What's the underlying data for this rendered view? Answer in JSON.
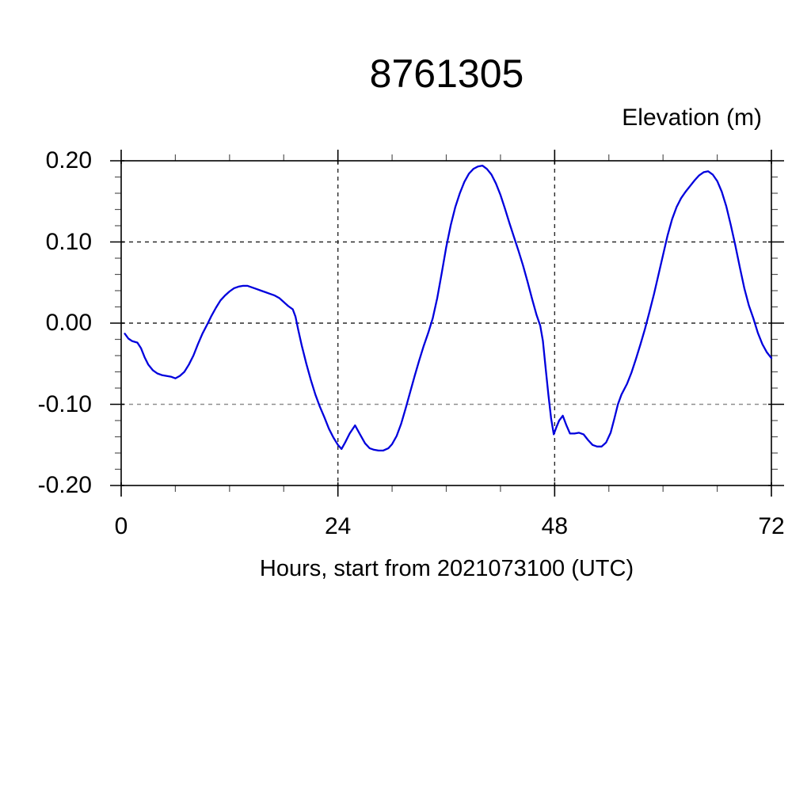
{
  "chart": {
    "title": "8761305",
    "y_axis_title": "Elevation (m)",
    "x_axis_label": "Hours, start from 2021073100 (UTC)"
  },
  "chart_data": {
    "type": "line",
    "title": "8761305",
    "xlabel": "Hours, start from 2021073100 (UTC)",
    "ylabel": "Elevation (m)",
    "xlim": [
      0,
      72
    ],
    "ylim": [
      -0.2,
      0.2
    ],
    "x_major_ticks": [
      0,
      24,
      48,
      72
    ],
    "x_minor_interval": 6,
    "y_major_ticks": [
      -0.2,
      -0.1,
      0.0,
      0.1,
      0.2
    ],
    "y_minor_interval": 0.02,
    "x_tick_labels": [
      "0",
      "24",
      "48",
      "72"
    ],
    "y_tick_labels": [
      "0.20",
      "0.10",
      "0.00",
      "-0.10",
      "-0.20"
    ],
    "grid": {
      "style": "dashed",
      "x_lines": [
        24,
        48
      ],
      "y_lines": [
        0.1,
        0.0,
        -0.1
      ],
      "x_line_color": "#2a2a2a",
      "y_line_colors": {
        "0.1": "#2a2a2a",
        "0": "#2a2a2a",
        "-0.1": "#8f8f8f"
      }
    },
    "line_color": "#0000dd",
    "frame_color": "#000000",
    "background": "#ffffff",
    "series": [
      {
        "name": "Elevation (m)",
        "points": [
          [
            0.4,
            -0.013
          ],
          [
            0.8,
            -0.019
          ],
          [
            1.2,
            -0.022
          ],
          [
            1.8,
            -0.024
          ],
          [
            2.2,
            -0.031
          ],
          [
            2.6,
            -0.042
          ],
          [
            3.0,
            -0.051
          ],
          [
            3.5,
            -0.058
          ],
          [
            4.0,
            -0.062
          ],
          [
            4.5,
            -0.064
          ],
          [
            5.0,
            -0.065
          ],
          [
            5.5,
            -0.066
          ],
          [
            6.0,
            -0.068
          ],
          [
            6.5,
            -0.065
          ],
          [
            7.0,
            -0.06
          ],
          [
            7.5,
            -0.051
          ],
          [
            8.0,
            -0.04
          ],
          [
            8.5,
            -0.026
          ],
          [
            9.0,
            -0.013
          ],
          [
            9.6,
            0.0
          ],
          [
            10.0,
            0.009
          ],
          [
            10.5,
            0.019
          ],
          [
            11.0,
            0.028
          ],
          [
            11.5,
            0.034
          ],
          [
            12.0,
            0.039
          ],
          [
            12.5,
            0.043
          ],
          [
            13.0,
            0.045
          ],
          [
            13.5,
            0.046
          ],
          [
            14.0,
            0.046
          ],
          [
            14.5,
            0.044
          ],
          [
            15.0,
            0.042
          ],
          [
            15.5,
            0.04
          ],
          [
            16.0,
            0.038
          ],
          [
            16.5,
            0.036
          ],
          [
            17.0,
            0.034
          ],
          [
            17.5,
            0.031
          ],
          [
            18.0,
            0.026
          ],
          [
            18.5,
            0.021
          ],
          [
            19.0,
            0.017
          ],
          [
            19.3,
            0.008
          ],
          [
            19.6,
            -0.008
          ],
          [
            20.0,
            -0.028
          ],
          [
            20.5,
            -0.05
          ],
          [
            21.0,
            -0.07
          ],
          [
            21.5,
            -0.088
          ],
          [
            22.0,
            -0.103
          ],
          [
            22.5,
            -0.116
          ],
          [
            23.0,
            -0.13
          ],
          [
            23.5,
            -0.141
          ],
          [
            24.0,
            -0.15
          ],
          [
            24.4,
            -0.155
          ],
          [
            24.8,
            -0.147
          ],
          [
            25.3,
            -0.136
          ],
          [
            25.9,
            -0.126
          ],
          [
            26.4,
            -0.136
          ],
          [
            27.0,
            -0.148
          ],
          [
            27.5,
            -0.154
          ],
          [
            28.0,
            -0.156
          ],
          [
            28.5,
            -0.157
          ],
          [
            29.0,
            -0.157
          ],
          [
            29.6,
            -0.154
          ],
          [
            30.0,
            -0.149
          ],
          [
            30.5,
            -0.139
          ],
          [
            31.0,
            -0.124
          ],
          [
            31.5,
            -0.105
          ],
          [
            32.0,
            -0.085
          ],
          [
            32.5,
            -0.065
          ],
          [
            33.0,
            -0.046
          ],
          [
            33.5,
            -0.028
          ],
          [
            34.0,
            -0.012
          ],
          [
            34.5,
            0.006
          ],
          [
            35.0,
            0.031
          ],
          [
            35.5,
            0.062
          ],
          [
            36.0,
            0.094
          ],
          [
            36.5,
            0.121
          ],
          [
            37.0,
            0.143
          ],
          [
            37.5,
            0.16
          ],
          [
            38.0,
            0.174
          ],
          [
            38.5,
            0.184
          ],
          [
            39.0,
            0.19
          ],
          [
            39.5,
            0.193
          ],
          [
            40.0,
            0.194
          ],
          [
            40.5,
            0.19
          ],
          [
            41.0,
            0.183
          ],
          [
            41.5,
            0.172
          ],
          [
            42.0,
            0.158
          ],
          [
            42.5,
            0.141
          ],
          [
            43.0,
            0.123
          ],
          [
            43.5,
            0.106
          ],
          [
            44.0,
            0.089
          ],
          [
            44.5,
            0.071
          ],
          [
            45.0,
            0.051
          ],
          [
            45.5,
            0.03
          ],
          [
            46.0,
            0.01
          ],
          [
            46.4,
            -0.003
          ],
          [
            46.7,
            -0.022
          ],
          [
            47.0,
            -0.055
          ],
          [
            47.3,
            -0.088
          ],
          [
            47.6,
            -0.117
          ],
          [
            47.9,
            -0.137
          ],
          [
            48.2,
            -0.128
          ],
          [
            48.5,
            -0.12
          ],
          [
            48.9,
            -0.114
          ],
          [
            49.3,
            -0.126
          ],
          [
            49.7,
            -0.136
          ],
          [
            50.2,
            -0.136
          ],
          [
            50.7,
            -0.135
          ],
          [
            51.2,
            -0.137
          ],
          [
            51.7,
            -0.144
          ],
          [
            52.2,
            -0.15
          ],
          [
            52.7,
            -0.152
          ],
          [
            53.2,
            -0.152
          ],
          [
            53.7,
            -0.147
          ],
          [
            54.2,
            -0.135
          ],
          [
            54.6,
            -0.118
          ],
          [
            55.0,
            -0.1
          ],
          [
            55.4,
            -0.088
          ],
          [
            56.0,
            -0.075
          ],
          [
            56.5,
            -0.061
          ],
          [
            57.0,
            -0.044
          ],
          [
            57.5,
            -0.026
          ],
          [
            58.0,
            -0.007
          ],
          [
            58.5,
            0.014
          ],
          [
            59.0,
            0.036
          ],
          [
            59.5,
            0.06
          ],
          [
            60.0,
            0.084
          ],
          [
            60.5,
            0.108
          ],
          [
            61.0,
            0.128
          ],
          [
            61.5,
            0.143
          ],
          [
            62.0,
            0.154
          ],
          [
            62.5,
            0.162
          ],
          [
            63.0,
            0.169
          ],
          [
            63.5,
            0.176
          ],
          [
            64.0,
            0.182
          ],
          [
            64.5,
            0.186
          ],
          [
            65.0,
            0.187
          ],
          [
            65.5,
            0.183
          ],
          [
            66.0,
            0.175
          ],
          [
            66.5,
            0.162
          ],
          [
            67.0,
            0.144
          ],
          [
            67.5,
            0.121
          ],
          [
            68.0,
            0.096
          ],
          [
            68.5,
            0.069
          ],
          [
            69.0,
            0.043
          ],
          [
            69.5,
            0.022
          ],
          [
            70.0,
            0.006
          ],
          [
            70.5,
            -0.012
          ],
          [
            71.0,
            -0.026
          ],
          [
            71.5,
            -0.036
          ],
          [
            72.0,
            -0.043
          ]
        ]
      }
    ]
  }
}
